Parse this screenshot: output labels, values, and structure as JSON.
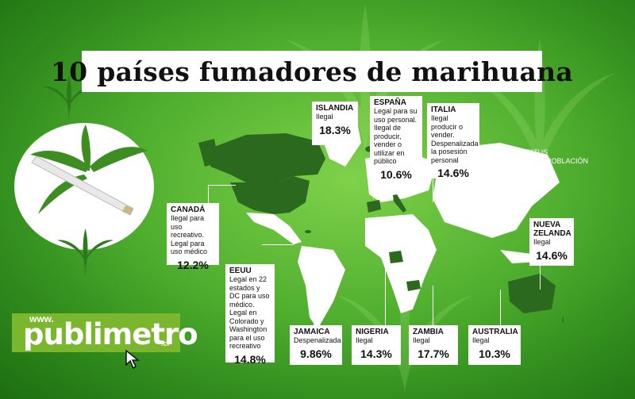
{
  "title": "10 países fumadores de marihuana",
  "legend": [
    "* ESTATUS",
    "* % DE LA POBLACIÓN"
  ],
  "logo": {
    "prefix": "www.",
    "brand": "publimetro",
    "suffix": ".cl"
  },
  "countries": {
    "islandia": {
      "name": "ISLANDIA",
      "status": "Ilegal",
      "pct": "18.3%"
    },
    "espana": {
      "name": "ESPAÑA",
      "status": "Legal para su uso personal. Ilegal de producir, vender o utilizar en público",
      "pct": "10.6%"
    },
    "italia": {
      "name": "ITALIA",
      "status": "Ilegal producir o vender. Despenalizada la posesión personal",
      "pct": "14.6%"
    },
    "canada": {
      "name": "CANADÁ",
      "status": "Ilegal para uso recreativo. Legal para uso médico",
      "pct": "12.2%"
    },
    "nueva_zelanda": {
      "name": "NUEVA ZELANDA",
      "status": "Ilegal",
      "pct": "14.6%"
    },
    "eeuu": {
      "name": "EEUU",
      "status": "Legal en 22 estados y DC para uso médico. Legal en Colorado y Washington para el uso recreativo",
      "pct": "14.8%"
    },
    "jamaica": {
      "name": "JAMAICA",
      "status": "Despenalizada",
      "pct": "9.86%"
    },
    "nigeria": {
      "name": "NIGERIA",
      "status": "Ilegal",
      "pct": "14.3%"
    },
    "zambia": {
      "name": "ZAMBIA",
      "status": "Ilegal",
      "pct": "17.7%"
    },
    "australia": {
      "name": "AUSTRALIA",
      "status": "Ilegal",
      "pct": "10.3%"
    }
  },
  "colors": {
    "highlight": "#2b6a1e",
    "land": "#ffffff",
    "background": "#4fae2e"
  },
  "icons": [
    "cannabis-leaf-icon",
    "joint-icon",
    "cursor-arrow-icon"
  ]
}
